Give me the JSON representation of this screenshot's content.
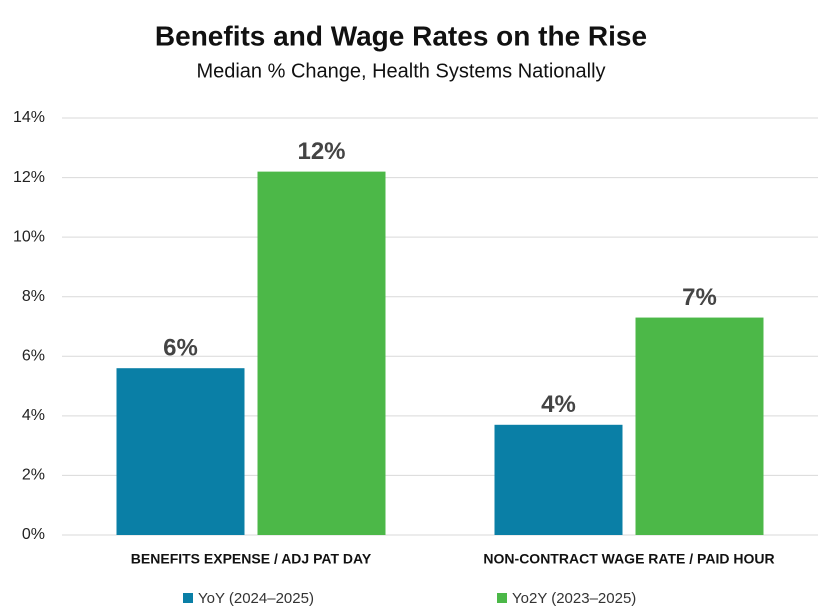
{
  "chart_data": {
    "type": "bar",
    "title": "Benefits and Wage Rates on the Rise",
    "subtitle": "Median % Change, Health Systems Nationally",
    "categories": [
      "BENEFITS EXPENSE / ADJ PAT DAY",
      "NON-CONTRACT WAGE RATE / PAID HOUR"
    ],
    "series": [
      {
        "name": "YoY (2024–2025)",
        "color": "#0a7fa6",
        "values": [
          5.6,
          3.7
        ],
        "value_labels": [
          "6%",
          "4%"
        ]
      },
      {
        "name": "Yo2Y (2023–2025)",
        "color": "#4cb848",
        "values": [
          12.2,
          7.3
        ],
        "value_labels": [
          "12%",
          "7%"
        ]
      }
    ],
    "ylim": [
      0,
      14
    ],
    "yticks": [
      {
        "value": 0,
        "label": "0%"
      },
      {
        "value": 2,
        "label": "2%"
      },
      {
        "value": 4,
        "label": "4%"
      },
      {
        "value": 6,
        "label": "6%"
      },
      {
        "value": 8,
        "label": "8%"
      },
      {
        "value": 10,
        "label": "10%"
      },
      {
        "value": 12,
        "label": "12%"
      },
      {
        "value": 14,
        "label": "14%"
      }
    ],
    "grid": true,
    "legend": "bottom"
  }
}
